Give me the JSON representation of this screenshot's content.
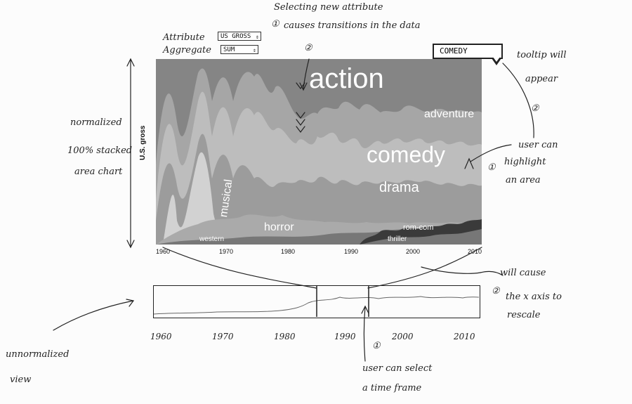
{
  "controls": {
    "attribute_label": "Attribute",
    "attribute_value": "US GROSS",
    "aggregate_label": "Aggregate",
    "aggregate_value": "SUM"
  },
  "tooltip": {
    "text": "COMEDY"
  },
  "streamgraph": {
    "ylabel": "U.S. gross",
    "x_ticks": [
      "1960",
      "1970",
      "1980",
      "1990",
      "2000",
      "2010"
    ],
    "layers": {
      "action": "action",
      "adventure": "adventure",
      "comedy": "comedy",
      "drama": "drama",
      "musical": "musical",
      "horror": "horror",
      "western": "western",
      "thriller": "thriller",
      "romcom": "rom-com"
    }
  },
  "mini_chart": {
    "x_ticks": [
      "1960",
      "1970",
      "1980",
      "1990",
      "2000",
      "2010"
    ]
  },
  "annotations": {
    "selecting_line1": "Selecting new attribute",
    "selecting_num": "①",
    "selecting_line2": "causes transitions in the data",
    "step2_num": "②",
    "tooltip_line1": "tooltip will",
    "tooltip_line2": "appear",
    "tooltip_num": "②",
    "highlight_line1": "user can",
    "highlight_line2": "highlight",
    "highlight_line3": "an area",
    "highlight_num": "①",
    "normalized_line1": "normalized",
    "normalized_line2": "100% stacked",
    "normalized_line3": "area chart",
    "rescale_line1": "will cause",
    "rescale_num": "②",
    "rescale_line2": "the x axis to",
    "rescale_line3": "rescale",
    "select_num": "①",
    "select_line1": "user can select",
    "select_line2": "a time frame",
    "unnormalized_line1": "unnormalized",
    "unnormalized_line2": "view"
  },
  "colors": {
    "action": "#8a8a8a",
    "adventure": "#a3a3a3",
    "comedy": "#b8b8b8",
    "drama": "#9a9a9a",
    "musical": "#c4c4c4",
    "horror": "#a8a8a8",
    "western": "#8f8f8f",
    "thriller": "#7c7c7c",
    "romcom": "#3c3c3c"
  }
}
